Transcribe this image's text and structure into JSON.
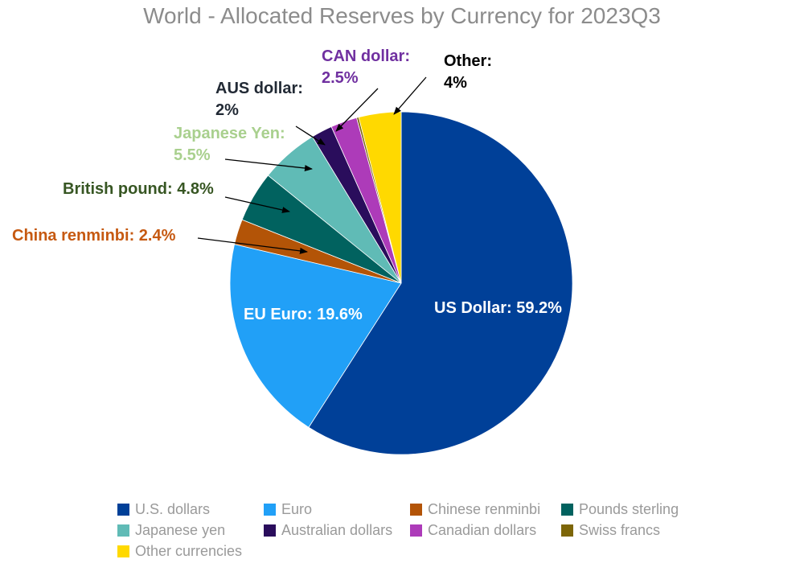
{
  "chart_data": {
    "type": "pie",
    "title": "World - Allocated Reserves by Currency for 2023Q3",
    "start_angle_deg": 0,
    "direction": "clockwise",
    "slices": [
      {
        "legend": "U.S. dollars",
        "value": 59.2,
        "color": "#004098"
      },
      {
        "legend": "Euro",
        "value": 19.6,
        "color": "#21a0f7"
      },
      {
        "legend": "Chinese renminbi",
        "value": 2.4,
        "color": "#b35407"
      },
      {
        "legend": "Pounds sterling",
        "value": 4.8,
        "color": "#01625f"
      },
      {
        "legend": "Japanese yen",
        "value": 5.5,
        "color": "#60bbb6"
      },
      {
        "legend": "Australian dollars",
        "value": 2.0,
        "color": "#2a0d5c"
      },
      {
        "legend": "Canadian dollars",
        "value": 2.5,
        "color": "#ad3bb9"
      },
      {
        "legend": "Swiss francs",
        "value": 0.2,
        "color": "#7d6608"
      },
      {
        "legend": "Other currencies",
        "value": 4.0,
        "color": "#ffd900"
      }
    ],
    "annotations": [
      {
        "id": "usd",
        "lines": [
          "US Dollar: 59.2%"
        ],
        "color": "#ffffff"
      },
      {
        "id": "eur",
        "lines": [
          "EU Euro: 19.6%"
        ],
        "color": "#ffffff"
      },
      {
        "id": "cny",
        "lines": [
          "China renminbi: 2.4%"
        ],
        "color": "#c65911"
      },
      {
        "id": "gbp",
        "lines": [
          "British pound: 4.8%"
        ],
        "color": "#375623"
      },
      {
        "id": "jpy",
        "lines": [
          "Japanese Yen:",
          "5.5%"
        ],
        "color": "#a9d08e"
      },
      {
        "id": "aud",
        "lines": [
          "AUS dollar:",
          "2%"
        ],
        "color": "#222a35"
      },
      {
        "id": "cad",
        "lines": [
          "CAN dollar:",
          "2.5%"
        ],
        "color": "#7030a0"
      },
      {
        "id": "oth",
        "lines": [
          "Other:",
          "4%"
        ],
        "color": "#000000"
      }
    ],
    "legend_position": "bottom"
  }
}
